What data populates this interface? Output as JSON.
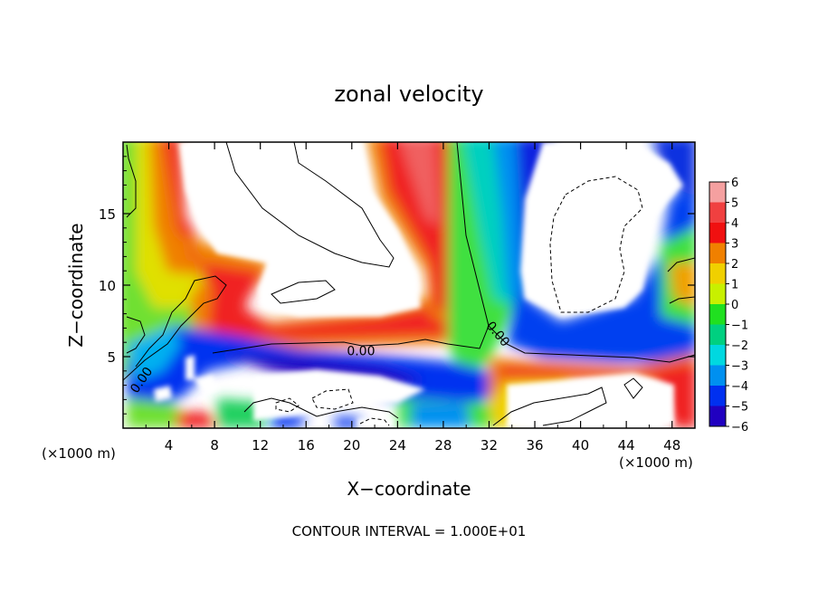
{
  "chart_data": {
    "type": "heatmap",
    "title": "zonal velocity",
    "xlabel": "X−coordinate",
    "ylabel": "Z−coordinate",
    "x_unit_left": "(×1000 m)",
    "x_unit_right": "(×1000 m)",
    "footer": "CONTOUR INTERVAL = 1.000E+01",
    "xlim": [
      0,
      50
    ],
    "ylim": [
      0,
      20
    ],
    "x_ticks": [
      4,
      8,
      12,
      16,
      20,
      24,
      28,
      32,
      36,
      40,
      44,
      48
    ],
    "x_tick_labels": [
      "4",
      "8",
      "12",
      "16",
      "20",
      "24",
      "28",
      "32",
      "36",
      "40",
      "44",
      "48"
    ],
    "y_ticks": [
      5,
      10,
      15
    ],
    "y_tick_labels": [
      "5",
      "10",
      "15"
    ],
    "colorbar": {
      "levels": [
        6,
        5,
        4,
        3,
        2,
        1,
        0,
        -1,
        -2,
        -3,
        -4,
        -5,
        -6
      ],
      "labels": [
        "6",
        "5",
        "4",
        "3",
        "2",
        "1",
        "0",
        "−1",
        "−2",
        "−3",
        "−4",
        "−5",
        "−6"
      ],
      "colors": [
        "#f5a0a0",
        "#f04040",
        "#f01010",
        "#f08000",
        "#f0d000",
        "#c8f000",
        "#20e020",
        "#00d080",
        "#00d8e0",
        "#0090f0",
        "#0030f0",
        "#2000c0",
        "#8000b0"
      ]
    },
    "contour_labels": [
      {
        "text": "0.00",
        "x": 20.8,
        "y": 5.4
      },
      {
        "text": "0.00",
        "x": 32.5,
        "y": 6.4
      },
      {
        "text": "0.00",
        "x": 1.9,
        "y": 3.2
      }
    ]
  }
}
